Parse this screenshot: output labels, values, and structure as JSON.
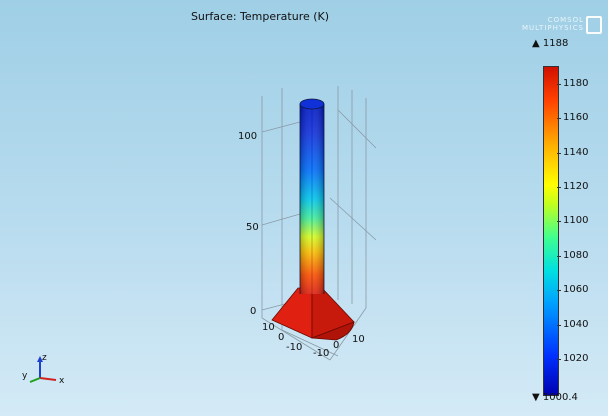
{
  "plot": {
    "title": "Surface: Temperature (K)",
    "z_ticks": [
      "100",
      "50",
      "0"
    ],
    "xy_ticks_left": [
      "10",
      "0",
      "-10"
    ],
    "xy_ticks_right": [
      "-10",
      "0",
      "10"
    ]
  },
  "colorbar": {
    "max_label": "▲ 1188",
    "min_label": "▼ 1000.4",
    "ticks": [
      "1180",
      "1160",
      "1140",
      "1120",
      "1100",
      "1080",
      "1060",
      "1040",
      "1020"
    ]
  },
  "triad": {
    "z": "z",
    "y": "y",
    "x": "x"
  },
  "logo": {
    "line1": "COMSOL",
    "line2": "MULTIPHYSICS"
  },
  "colors": {
    "hot": "#e02010",
    "cold": "#0018c8",
    "background_top": "#9fcfe6",
    "background_bottom": "#d4eaf6"
  }
}
